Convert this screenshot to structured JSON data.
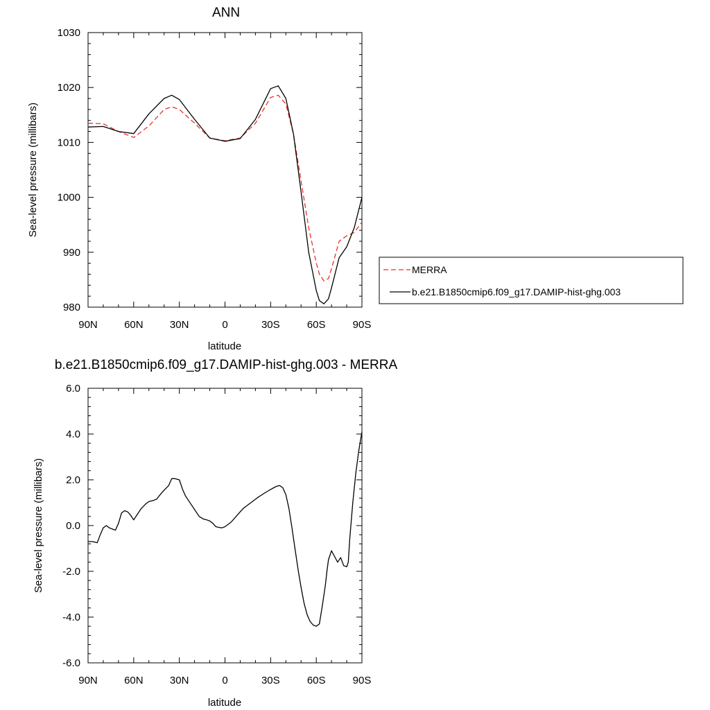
{
  "chart_data": [
    {
      "type": "line",
      "title": "ANN",
      "xlabel": "latitude",
      "ylabel": "Sea-level pressure (millibars)",
      "xlim": [
        90,
        -90
      ],
      "ylim": [
        980,
        1030
      ],
      "x_ticks": [
        90,
        60,
        30,
        0,
        -30,
        -60,
        -90
      ],
      "x_tick_labels": [
        "90N",
        "60N",
        "30N",
        "0",
        "30S",
        "60S",
        "90S"
      ],
      "y_ticks": [
        980,
        990,
        1000,
        1010,
        1020,
        1030
      ],
      "y_tick_labels": [
        "980",
        "990",
        "1000",
        "1010",
        "1020",
        "1030"
      ],
      "legend_position": "right",
      "series": [
        {
          "name": "MERRA",
          "color": "#e8302a",
          "style": "dashed",
          "x": [
            90,
            80,
            70,
            60,
            50,
            40,
            35,
            30,
            20,
            10,
            0,
            -10,
            -20,
            -30,
            -35,
            -40,
            -45,
            -50,
            -55,
            -60,
            -62,
            -65,
            -68,
            -70,
            -75,
            -80,
            -85,
            -90
          ],
          "y": [
            1013.5,
            1013.4,
            1012,
            1010.9,
            1013,
            1016,
            1016.5,
            1016,
            1013.5,
            1010.8,
            1010.3,
            1010.8,
            1013.5,
            1018.2,
            1018.6,
            1017,
            1011.5,
            1003,
            994.5,
            988,
            986,
            984.8,
            985.2,
            987,
            992,
            993,
            993.6,
            995.5
          ]
        },
        {
          "name": "b.e21.B1850cmip6.f09_g17.DAMIP-hist-ghg.003",
          "color": "#000000",
          "style": "solid",
          "x": [
            90,
            80,
            70,
            60,
            50,
            40,
            35,
            30,
            20,
            10,
            0,
            -10,
            -20,
            -30,
            -35,
            -40,
            -45,
            -50,
            -55,
            -60,
            -62,
            -65,
            -68,
            -70,
            -75,
            -80,
            -85,
            -90
          ],
          "y": [
            1012.8,
            1012.9,
            1012,
            1011.6,
            1015.2,
            1018,
            1018.6,
            1017.8,
            1014.2,
            1010.8,
            1010.2,
            1010.7,
            1014.2,
            1019.8,
            1020.3,
            1018,
            1011.5,
            1001,
            990,
            983,
            981.2,
            980.6,
            981.5,
            983.5,
            989,
            991,
            994.5,
            1000
          ]
        }
      ]
    },
    {
      "type": "line",
      "title": "b.e21.B1850cmip6.f09_g17.DAMIP-hist-ghg.003 - MERRA",
      "xlabel": "latitude",
      "ylabel": "Sea-level pressure (millibars)",
      "xlim": [
        90,
        -90
      ],
      "ylim": [
        -6,
        6
      ],
      "x_ticks": [
        90,
        60,
        30,
        0,
        -30,
        -60,
        -90
      ],
      "x_tick_labels": [
        "90N",
        "60N",
        "30N",
        "0",
        "30S",
        "60S",
        "90S"
      ],
      "y_ticks": [
        -6,
        -4,
        -2,
        0,
        2,
        4,
        6
      ],
      "y_tick_labels": [
        "-6.0",
        "-4.0",
        "-2.0",
        "0.0",
        "2.0",
        "4.0",
        "6.0"
      ],
      "series": [
        {
          "color": "#000000",
          "style": "solid",
          "x": [
            90,
            87,
            84,
            82,
            80,
            78,
            76,
            74,
            72,
            70,
            68,
            66,
            64,
            62,
            60,
            58,
            55,
            52,
            50,
            47,
            45,
            42,
            40,
            37,
            35,
            33,
            30,
            28,
            26,
            24,
            22,
            20,
            17,
            14,
            12,
            10,
            8,
            6,
            4,
            2,
            0,
            -2,
            -4,
            -6,
            -8,
            -10,
            -12,
            -14,
            -16,
            -18,
            -20,
            -22,
            -25,
            -28,
            -30,
            -32,
            -34,
            -36,
            -38,
            -40,
            -42,
            -44,
            -46,
            -48,
            -50,
            -52,
            -54,
            -56,
            -58,
            -60,
            -62,
            -64,
            -66,
            -67,
            -68,
            -70,
            -72,
            -74,
            -76,
            -78,
            -80,
            -81,
            -82,
            -84,
            -86,
            -88,
            -90
          ],
          "y": [
            -0.7,
            -0.7,
            -0.75,
            -0.4,
            -0.1,
            0.0,
            -0.1,
            -0.15,
            -0.2,
            0.1,
            0.55,
            0.65,
            0.6,
            0.45,
            0.25,
            0.45,
            0.75,
            0.95,
            1.05,
            1.1,
            1.15,
            1.4,
            1.55,
            1.75,
            2.05,
            2.05,
            2.0,
            1.6,
            1.3,
            1.1,
            0.9,
            0.7,
            0.4,
            0.28,
            0.25,
            0.2,
            0.1,
            -0.05,
            -0.08,
            -0.1,
            -0.05,
            0.05,
            0.15,
            0.3,
            0.45,
            0.6,
            0.75,
            0.85,
            0.95,
            1.05,
            1.15,
            1.25,
            1.38,
            1.5,
            1.58,
            1.65,
            1.72,
            1.75,
            1.65,
            1.35,
            0.75,
            -0.1,
            -1.0,
            -1.9,
            -2.7,
            -3.4,
            -3.9,
            -4.2,
            -4.35,
            -4.4,
            -4.3,
            -3.5,
            -2.6,
            -2.0,
            -1.5,
            -1.1,
            -1.35,
            -1.6,
            -1.4,
            -1.75,
            -1.8,
            -1.6,
            -0.6,
            1.0,
            2.3,
            3.3,
            4.1
          ]
        }
      ]
    }
  ]
}
